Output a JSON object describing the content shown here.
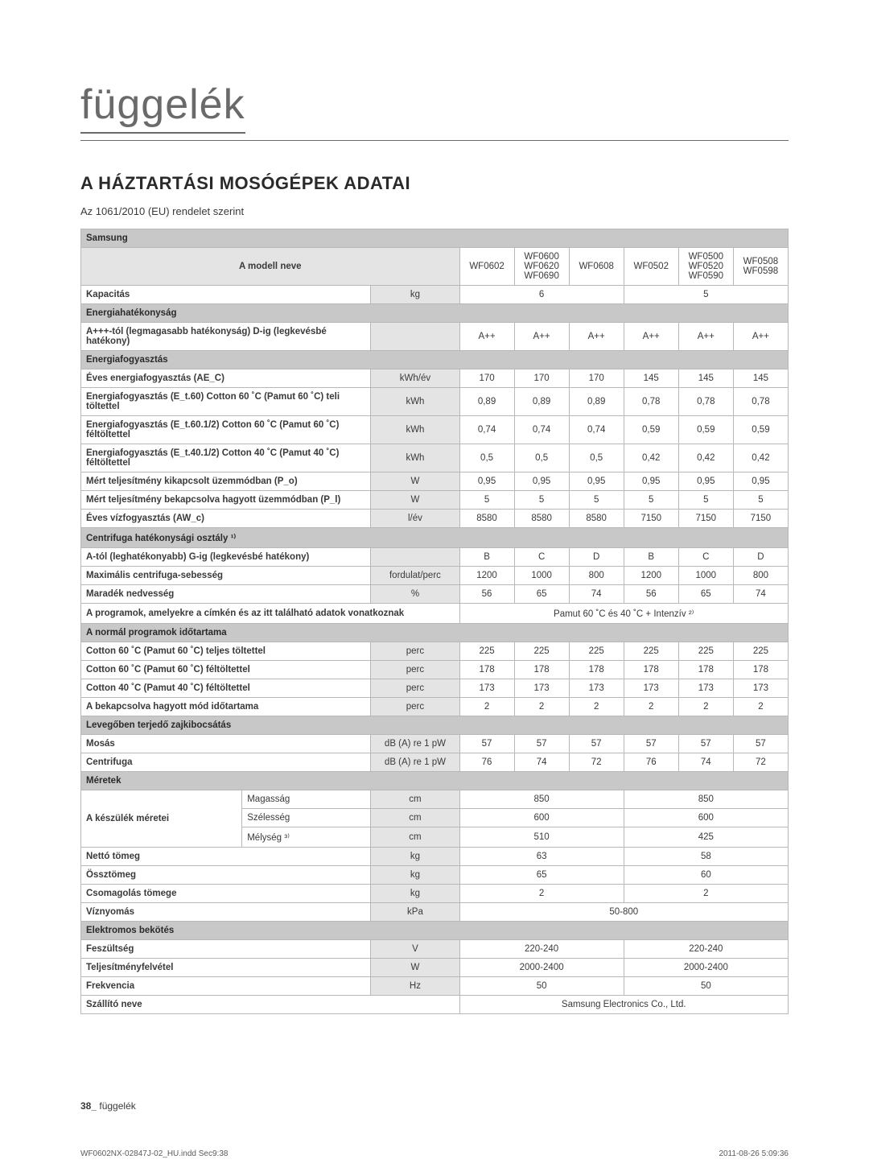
{
  "page": {
    "title": "függelék",
    "section_title": "A HÁZTARTÁSI MOSÓGÉPEK ADATAI",
    "subtitle": "Az 1061/2010 (EU) rendelet szerint",
    "footer_page": "38_",
    "footer_page_word": "függelék",
    "footer_left": "WF0602NX-02847J-02_HU.indd   Sec9:38",
    "footer_right": "2011-08-26   5:09:36"
  },
  "colors": {
    "header_bg": "#c8c8c8",
    "unit_bg": "#e4e4e4",
    "border": "#b8b8b8",
    "text": "#3a3a3a",
    "title": "#6a6a6a"
  },
  "table": {
    "brand": "Samsung",
    "model_row_label": "A modell neve",
    "models": [
      "WF0602",
      "WF0600\nWF0620\nWF0690",
      "WF0608",
      "WF0502",
      "WF0500\nWF0520\nWF0590",
      "WF0508\nWF0598"
    ],
    "rows": [
      {
        "type": "data",
        "label": "Kapacitás",
        "bold": true,
        "unit": "kg",
        "vals": [
          {
            "span": 3,
            "v": "6"
          },
          {
            "span": 3,
            "v": "5"
          }
        ]
      },
      {
        "type": "section",
        "label": "Energiahatékonyság"
      },
      {
        "type": "data",
        "label": "A+++-tól (legmagasabb hatékonyság) D-ig (legkevésbé hatékony)",
        "bold": true,
        "unit": "",
        "vals": [
          "A++",
          "A++",
          "A++",
          "A++",
          "A++",
          "A++"
        ]
      },
      {
        "type": "section",
        "label": "Energiafogyasztás"
      },
      {
        "type": "data",
        "label": "Éves energiafogyasztás (AE_C)",
        "bold": true,
        "unit": "kWh/év",
        "vals": [
          "170",
          "170",
          "170",
          "145",
          "145",
          "145"
        ]
      },
      {
        "type": "data",
        "label": "Energiafogyasztás (E_t.60) Cotton 60 ˚C (Pamut 60 ˚C) teli töltettel",
        "bold": true,
        "unit": "kWh",
        "vals": [
          "0,89",
          "0,89",
          "0,89",
          "0,78",
          "0,78",
          "0,78"
        ]
      },
      {
        "type": "data",
        "label": "Energiafogyasztás (E_t.60.1/2) Cotton 60 ˚C (Pamut 60 ˚C) féltöltettel",
        "bold": true,
        "unit": "kWh",
        "vals": [
          "0,74",
          "0,74",
          "0,74",
          "0,59",
          "0,59",
          "0,59"
        ]
      },
      {
        "type": "data",
        "label": "Energiafogyasztás (E_t.40.1/2) Cotton 40 ˚C (Pamut 40 ˚C) féltöltettel",
        "bold": true,
        "unit": "kWh",
        "vals": [
          "0,5",
          "0,5",
          "0,5",
          "0,42",
          "0,42",
          "0,42"
        ]
      },
      {
        "type": "data",
        "label": "Mért teljesítmény kikapcsolt üzemmódban (P_o)",
        "bold": true,
        "unit": "W",
        "vals": [
          "0,95",
          "0,95",
          "0,95",
          "0,95",
          "0,95",
          "0,95"
        ]
      },
      {
        "type": "data",
        "label": "Mért teljesítmény bekapcsolva hagyott üzemmódban (P_l)",
        "bold": true,
        "unit": "W",
        "vals": [
          "5",
          "5",
          "5",
          "5",
          "5",
          "5"
        ]
      },
      {
        "type": "data",
        "label": "Éves vízfogyasztás (AW_c)",
        "bold": true,
        "unit": "l/év",
        "vals": [
          "8580",
          "8580",
          "8580",
          "7150",
          "7150",
          "7150"
        ]
      },
      {
        "type": "section",
        "label": "Centrifuga hatékonysági osztály ¹⁾"
      },
      {
        "type": "data",
        "label": "A-tól (leghatékonyabb) G-ig (legkevésbé hatékony)",
        "bold": true,
        "unit": "",
        "vals": [
          "B",
          "C",
          "D",
          "B",
          "C",
          "D"
        ]
      },
      {
        "type": "data",
        "label": "Maximális centrifuga-sebesség",
        "bold": true,
        "unit": "fordulat/perc",
        "vals": [
          "1200",
          "1000",
          "800",
          "1200",
          "1000",
          "800"
        ]
      },
      {
        "type": "data",
        "label": "Maradék nedvesség",
        "bold": true,
        "unit": "%",
        "vals": [
          "56",
          "65",
          "74",
          "56",
          "65",
          "74"
        ]
      },
      {
        "type": "data",
        "label": "A programok, amelyekre a címkén és az itt található adatok vonatkoznak",
        "bold": true,
        "unit_merge": true,
        "vals": [
          {
            "span": 6,
            "v": "Pamut 60 ˚C és 40 ˚C + Intenzív ²⁾"
          }
        ]
      },
      {
        "type": "section",
        "label": "A normál programok időtartama"
      },
      {
        "type": "data",
        "label": "Cotton 60 ˚C (Pamut 60 ˚C) teljes töltettel",
        "bold": true,
        "unit": "perc",
        "vals": [
          "225",
          "225",
          "225",
          "225",
          "225",
          "225"
        ]
      },
      {
        "type": "data",
        "label": "Cotton 60 ˚C (Pamut 60 ˚C) féltöltettel",
        "bold": true,
        "unit": "perc",
        "vals": [
          "178",
          "178",
          "178",
          "178",
          "178",
          "178"
        ]
      },
      {
        "type": "data",
        "label": "Cotton 40 ˚C (Pamut 40 ˚C) féltöltettel",
        "bold": true,
        "unit": "perc",
        "vals": [
          "173",
          "173",
          "173",
          "173",
          "173",
          "173"
        ]
      },
      {
        "type": "data",
        "label": "A bekapcsolva hagyott mód időtartama",
        "bold": true,
        "unit": "perc",
        "vals": [
          "2",
          "2",
          "2",
          "2",
          "2",
          "2"
        ]
      },
      {
        "type": "section",
        "label": "Levegőben terjedő zajkibocsátás"
      },
      {
        "type": "data",
        "label": "Mosás",
        "bold": true,
        "unit": "dB (A) re 1 pW",
        "vals": [
          "57",
          "57",
          "57",
          "57",
          "57",
          "57"
        ]
      },
      {
        "type": "data",
        "label": "Centrifuga",
        "bold": true,
        "unit": "dB (A) re 1 pW",
        "vals": [
          "76",
          "74",
          "72",
          "76",
          "74",
          "72"
        ]
      },
      {
        "type": "section",
        "label": "Méretek"
      },
      {
        "type": "dim",
        "group": "A készülék méretei",
        "sub": "Magasság",
        "unit": "cm",
        "vals": [
          {
            "span": 3,
            "v": "850"
          },
          {
            "span": 3,
            "v": "850"
          }
        ]
      },
      {
        "type": "dim",
        "sub": "Szélesség",
        "unit": "cm",
        "vals": [
          {
            "span": 3,
            "v": "600"
          },
          {
            "span": 3,
            "v": "600"
          }
        ]
      },
      {
        "type": "dim",
        "sub": "Mélység ³⁾",
        "unit": "cm",
        "vals": [
          {
            "span": 3,
            "v": "510"
          },
          {
            "span": 3,
            "v": "425"
          }
        ]
      },
      {
        "type": "data",
        "label": "Nettó tömeg",
        "bold": true,
        "unit": "kg",
        "vals": [
          {
            "span": 3,
            "v": "63"
          },
          {
            "span": 3,
            "v": "58"
          }
        ]
      },
      {
        "type": "data",
        "label": "Össztömeg",
        "bold": true,
        "unit": "kg",
        "vals": [
          {
            "span": 3,
            "v": "65"
          },
          {
            "span": 3,
            "v": "60"
          }
        ]
      },
      {
        "type": "data",
        "label": "Csomagolás tömege",
        "bold": true,
        "unit": "kg",
        "vals": [
          {
            "span": 3,
            "v": "2"
          },
          {
            "span": 3,
            "v": "2"
          }
        ]
      },
      {
        "type": "data",
        "label": "Víznyomás",
        "bold": true,
        "unit": "kPa",
        "vals": [
          {
            "span": 6,
            "v": "50-800"
          }
        ]
      },
      {
        "type": "section",
        "label": "Elektromos bekötés"
      },
      {
        "type": "data",
        "label": "Feszültség",
        "bold": true,
        "unit": "V",
        "vals": [
          {
            "span": 3,
            "v": "220-240"
          },
          {
            "span": 3,
            "v": "220-240"
          }
        ]
      },
      {
        "type": "data",
        "label": "Teljesítményfelvétel",
        "bold": true,
        "unit": "W",
        "vals": [
          {
            "span": 3,
            "v": "2000-2400"
          },
          {
            "span": 3,
            "v": "2000-2400"
          }
        ]
      },
      {
        "type": "data",
        "label": "Frekvencia",
        "bold": true,
        "unit": "Hz",
        "vals": [
          {
            "span": 3,
            "v": "50"
          },
          {
            "span": 3,
            "v": "50"
          }
        ]
      },
      {
        "type": "data",
        "label": "Szállító neve",
        "bold": true,
        "unit_merge": true,
        "vals": [
          {
            "span": 6,
            "v": "Samsung Electronics Co., Ltd."
          }
        ]
      }
    ]
  }
}
